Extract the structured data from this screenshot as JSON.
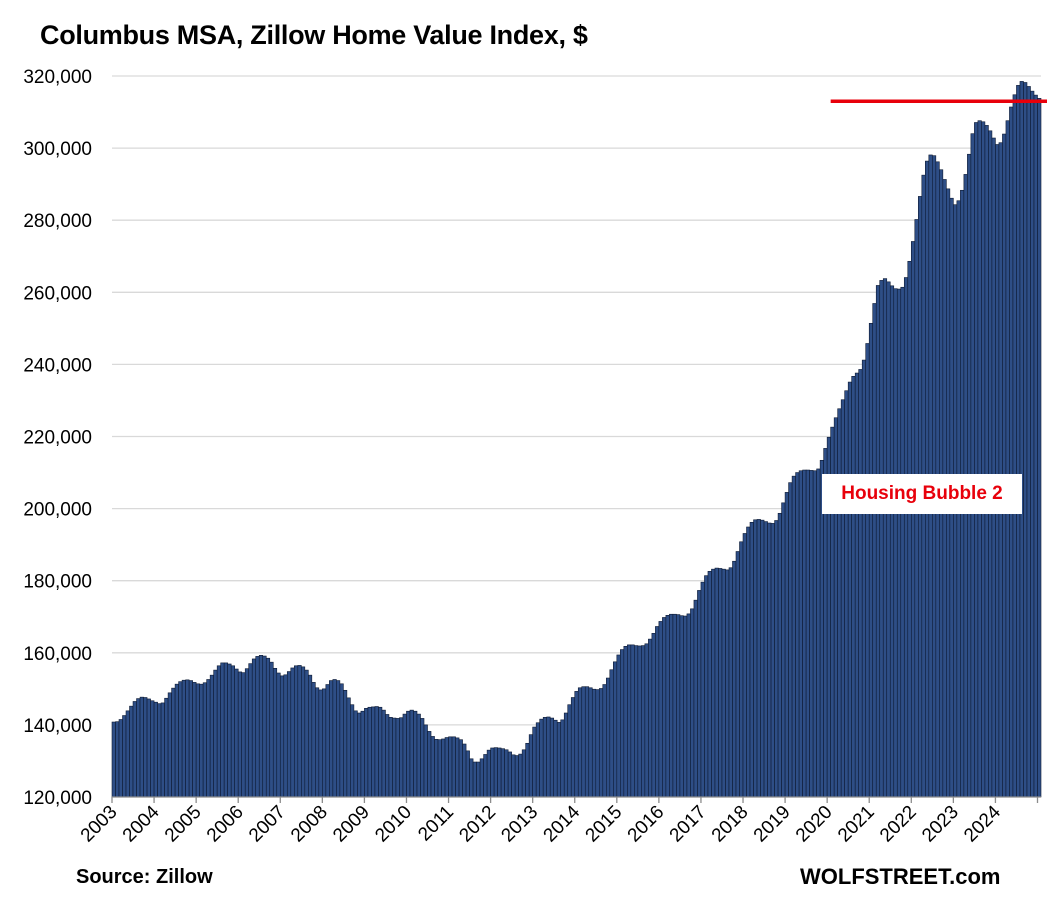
{
  "chart_data": {
    "type": "bar",
    "title": "Columbus MSA, Zillow Home Value Index, $",
    "source": "Source: Zillow",
    "brand": "WOLFSTREET.com",
    "annotation": "Housing Bubble 2",
    "ylim": [
      120000,
      320000
    ],
    "yticks": [
      120000,
      140000,
      160000,
      180000,
      200000,
      220000,
      240000,
      260000,
      280000,
      300000,
      320000
    ],
    "ytick_labels": [
      "120,000",
      "140,000",
      "160,000",
      "180,000",
      "200,000",
      "220,000",
      "240,000",
      "260,000",
      "280,000",
      "300,000",
      "320,000"
    ],
    "xtick_labels": [
      "2003",
      "2004",
      "2005",
      "2006",
      "2007",
      "2008",
      "2009",
      "2010",
      "2011",
      "2012",
      "2013",
      "2014",
      "2015",
      "2016",
      "2017",
      "2018",
      "2019",
      "2020",
      "2021",
      "2022",
      "2023",
      "2024"
    ],
    "grid": true,
    "reference_line": {
      "value": 313000,
      "color": "#e8000b",
      "start_year": 2020,
      "start_month": 2
    },
    "bar_color": "#2e4e86",
    "bar_edge_color": "#0d1a33",
    "start_year": 2003,
    "start_month": 1,
    "frequency": "monthly",
    "values": [
      140800,
      140900,
      141500,
      142600,
      143900,
      145200,
      146500,
      147300,
      147700,
      147600,
      147200,
      146700,
      146300,
      145900,
      146100,
      147400,
      148900,
      150200,
      151300,
      152000,
      152400,
      152500,
      152300,
      151800,
      151400,
      151300,
      151700,
      152600,
      153800,
      155200,
      156400,
      157200,
      157200,
      156900,
      156400,
      155500,
      154700,
      154500,
      155600,
      157000,
      158300,
      159000,
      159300,
      159100,
      158500,
      157400,
      155700,
      154400,
      153600,
      153900,
      154800,
      155800,
      156400,
      156500,
      156100,
      155200,
      153800,
      151800,
      150300,
      149700,
      150000,
      151200,
      152300,
      152600,
      152300,
      151400,
      149600,
      147500,
      145600,
      143900,
      143300,
      143800,
      144600,
      144900,
      145000,
      145100,
      144900,
      144100,
      142900,
      142100,
      141900,
      141800,
      142000,
      143000,
      143800,
      144100,
      143800,
      143000,
      141800,
      140000,
      138200,
      136800,
      136000,
      135900,
      136100,
      136500,
      136700,
      136700,
      136400,
      135900,
      134700,
      132800,
      130600,
      129700,
      129700,
      130600,
      131800,
      133000,
      133600,
      133700,
      133600,
      133400,
      133100,
      132500,
      131700,
      131500,
      131900,
      133100,
      134900,
      137300,
      139400,
      140600,
      141600,
      142100,
      142200,
      141900,
      141300,
      140700,
      141400,
      143300,
      145600,
      147600,
      149300,
      150300,
      150600,
      150600,
      150300,
      149900,
      149800,
      150100,
      151200,
      153000,
      155300,
      157500,
      159400,
      160900,
      161800,
      162200,
      162200,
      162000,
      161900,
      162000,
      162500,
      163800,
      165400,
      167300,
      168700,
      169800,
      170400,
      170700,
      170700,
      170600,
      170300,
      170200,
      170800,
      172200,
      174600,
      177300,
      179600,
      181400,
      182600,
      183200,
      183500,
      183400,
      183200,
      183000,
      183600,
      185400,
      188100,
      190800,
      193100,
      194900,
      196200,
      196900,
      197000,
      196800,
      196400,
      196000,
      195900,
      196700,
      198700,
      201600,
      204500,
      207200,
      209000,
      210000,
      210500,
      210700,
      210700,
      210600,
      210500,
      211000,
      213400,
      216700,
      219800,
      222600,
      225200,
      227700,
      230200,
      232700,
      235100,
      236700,
      237600,
      238600,
      241200,
      245800,
      251400,
      256900,
      261900,
      263300,
      263800,
      262900,
      261800,
      261000,
      260900,
      261400,
      264100,
      268600,
      274100,
      280200,
      286600,
      292500,
      296400,
      298100,
      297900,
      296200,
      294000,
      291300,
      288700,
      286100,
      284300,
      285400,
      288300,
      292700,
      298300,
      304000,
      307100,
      307600,
      307300,
      306300,
      304800,
      302800,
      301000,
      301500,
      303900,
      307600,
      311400,
      314800,
      317400,
      318500,
      318200,
      317100,
      315800,
      314700,
      313800
    ]
  }
}
